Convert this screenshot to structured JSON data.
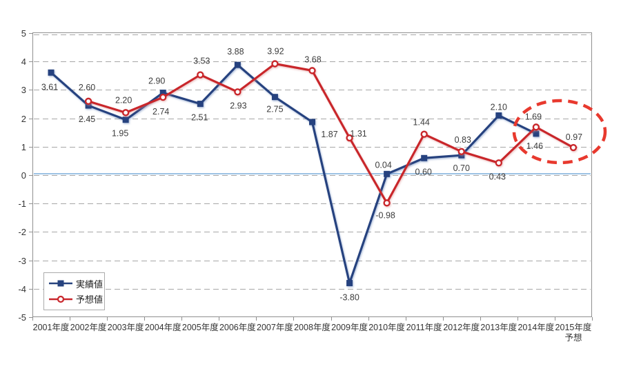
{
  "figure": {
    "background": "#ffffff"
  },
  "chart_data": {
    "type": "line",
    "title": "",
    "xlabel": "",
    "ylabel": "",
    "categories": [
      "2001年度",
      "2002年度",
      "2003年度",
      "2004年度",
      "2005年度",
      "2006年度",
      "2007年度",
      "2008年度",
      "2009年度",
      "2010年度",
      "2011年度",
      "2012年度",
      "2013年度",
      "2014年度",
      "2015年度\n予想"
    ],
    "series": [
      {
        "name": "実績値",
        "color": "#27437f",
        "marker": "filled-square",
        "values": [
          3.61,
          2.45,
          1.95,
          2.9,
          2.51,
          3.88,
          2.75,
          1.87,
          -3.8,
          0.04,
          0.6,
          0.7,
          2.1,
          1.46,
          null
        ]
      },
      {
        "name": "予想値",
        "color": "#c9272c",
        "marker": "open-circle",
        "values": [
          null,
          2.6,
          2.2,
          2.74,
          3.53,
          2.93,
          3.92,
          3.68,
          1.31,
          -0.98,
          1.44,
          0.83,
          0.43,
          1.69,
          0.97
        ]
      }
    ],
    "data_labels_visible": true,
    "ylim": [
      -5,
      5
    ],
    "y_tick_labels": [
      "5",
      "4",
      "3",
      "2",
      "1",
      "0",
      "-1",
      "-2",
      "-3",
      "-4",
      "-5"
    ],
    "grid": "horizontal-dashed",
    "grid_color": "#a6a6a6",
    "axis_color": "#8f8f8f",
    "zero_line_color": "#9cc2e4",
    "legend_position": "inside-bottom-left",
    "annotation": {
      "shape": "dashed-ellipse",
      "color": "#e8392e",
      "highlights": "1.69 / 1.46 / 0.97"
    }
  },
  "legend": {
    "items": [
      {
        "label": "実績値"
      },
      {
        "label": "予想値"
      }
    ]
  }
}
